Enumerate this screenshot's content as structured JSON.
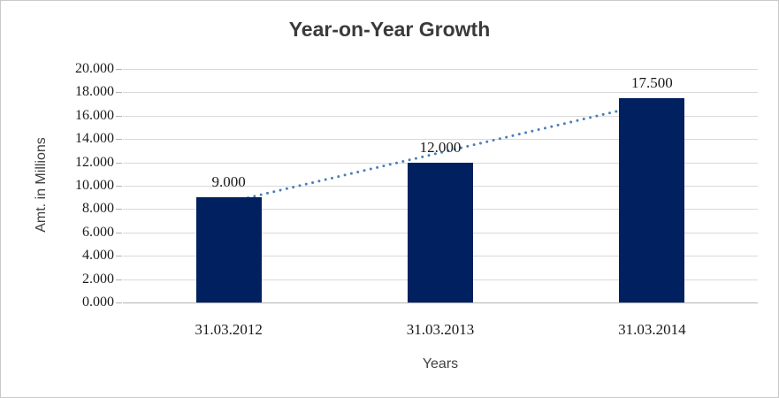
{
  "chart_data": {
    "type": "bar",
    "title": "Year-on-Year Growth",
    "xlabel": "Years",
    "ylabel": "Amt. in Millions",
    "categories": [
      "31.03.2012",
      "31.03.2013",
      "31.03.2014"
    ],
    "values": [
      9.0,
      12.0,
      17.5
    ],
    "data_labels": [
      "9.000",
      "12.000",
      "17.500"
    ],
    "ylim": [
      0,
      20
    ],
    "ytick_step": 2,
    "ytick_labels": [
      "0.000",
      "2.000",
      "4.000",
      "6.000",
      "8.000",
      "10.000",
      "12.000",
      "14.000",
      "16.000",
      "18.000",
      "20.000"
    ],
    "grid": true,
    "legend": "none",
    "bar_color": "#002060",
    "gridline_color": "#d9d9d9",
    "axis_line_color": "#b3b3b3",
    "text_color": "#1a1a1a",
    "title_color": "#3a3a3a",
    "trendline": {
      "type": "linear",
      "style": "dotted",
      "color": "#4a7ebb"
    }
  }
}
